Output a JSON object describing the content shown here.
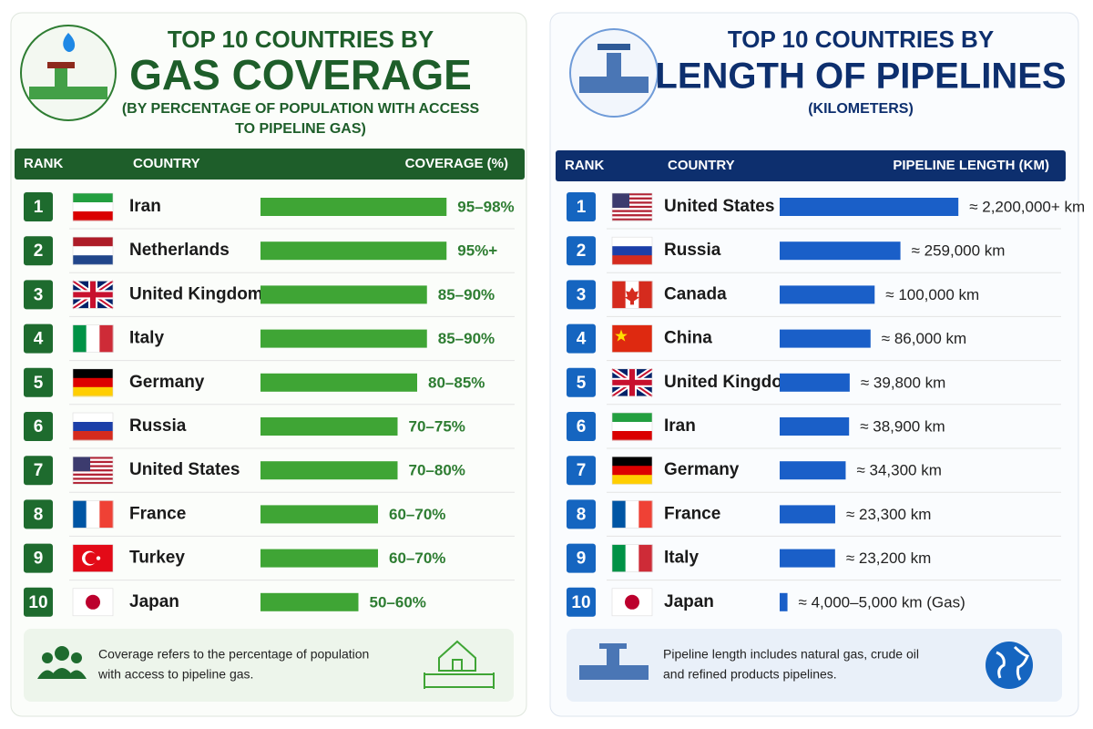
{
  "chart_data": [
    {
      "type": "bar",
      "orientation": "horizontal",
      "title": "TOP 10 COUNTRIES BY",
      "title_main": "GAS COVERAGE",
      "subtitle": [
        "(BY PERCENTAGE OF POPULATION WITH ACCESS",
        "TO PIPELINE GAS)"
      ],
      "columns": [
        "RANK",
        "COUNTRY",
        "COVERAGE (%)"
      ],
      "ranks": [
        "1",
        "2",
        "3",
        "4",
        "5",
        "6",
        "7",
        "8",
        "9",
        "10"
      ],
      "categories": [
        "Iran",
        "Netherlands",
        "United Kingdom",
        "Italy",
        "Germany",
        "Russia",
        "United States",
        "France",
        "Turkey",
        "Japan"
      ],
      "values": [
        95,
        95,
        85,
        85,
        80,
        70,
        70,
        60,
        60,
        50
      ],
      "value_labels": [
        "95–98%",
        "95%+",
        "85–90%",
        "85–90%",
        "80–85%",
        "70–75%",
        "70–80%",
        "60–70%",
        "60–70%",
        "50–60%"
      ],
      "xlim": [
        0,
        100
      ],
      "log_scale": false,
      "color": "#3fa535",
      "note": [
        "Coverage refers to the percentage of population",
        "with access to pipeline gas."
      ]
    },
    {
      "type": "bar",
      "orientation": "horizontal",
      "title": "TOP 10 COUNTRIES BY",
      "title_main": "LENGTH OF PIPELINES",
      "subtitle": [
        "(KILOMETERS)"
      ],
      "columns": [
        "RANK",
        "COUNTRY",
        "PIPELINE LENGTH (KM)"
      ],
      "ranks": [
        "1",
        "2",
        "3",
        "4",
        "5",
        "6",
        "7",
        "8",
        "9",
        "10"
      ],
      "categories": [
        "United States",
        "Russia",
        "Canada",
        "China",
        "United Kingdom",
        "Iran",
        "Germany",
        "France",
        "Italy",
        "Japan"
      ],
      "values": [
        2200000,
        259000,
        100000,
        86000,
        39800,
        38900,
        34300,
        23300,
        23200,
        4000
      ],
      "value_labels": [
        "≈ 2,200,000+ km",
        "≈ 259,000 km",
        "≈ 100,000 km",
        "≈ 86,000 km",
        "≈ 39,800 km",
        "≈ 38,900 km",
        "≈ 34,300 km",
        "≈ 23,300 km",
        "≈ 23,200 km",
        "≈ 4,000–5,000 km (Gas)"
      ],
      "xlim": [
        3000,
        2500000
      ],
      "log_scale": true,
      "color": "#1a5fc8",
      "note": [
        "Pipeline length includes natural gas, crude oil",
        "and refined products pipelines."
      ]
    }
  ]
}
